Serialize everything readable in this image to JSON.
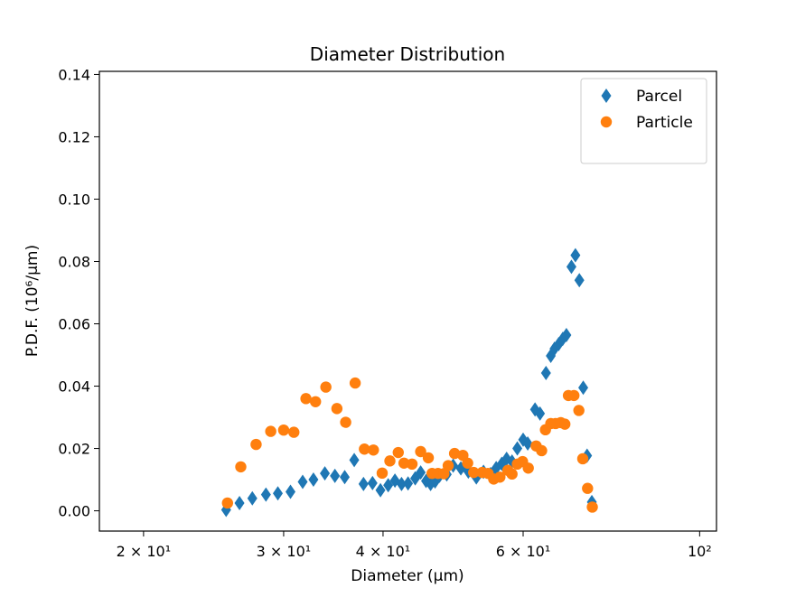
{
  "chart_data": {
    "type": "scatter",
    "title": "Diameter Distribution",
    "xlabel": "Diameter (μm)",
    "ylabel": "P.D.F. (10⁶/μm)",
    "x_scale": "log",
    "xlim": [
      17.6,
      105
    ],
    "ylim": [
      -0.0065,
      0.141
    ],
    "x_ticks": [
      {
        "value": 20,
        "label": "2 × 10¹"
      },
      {
        "value": 30,
        "label": "3 × 10¹"
      },
      {
        "value": 40,
        "label": "4 × 10¹"
      },
      {
        "value": 60,
        "label": "6 × 10¹"
      },
      {
        "value": 100,
        "label": "10²"
      }
    ],
    "y_ticks": [
      0.0,
      0.02,
      0.04,
      0.06,
      0.08,
      0.1,
      0.12,
      0.14
    ],
    "y_tick_labels": [
      "0.00",
      "0.02",
      "0.04",
      "0.06",
      "0.08",
      "0.10",
      "0.12",
      "0.14"
    ],
    "grid": false,
    "legend_position": "top-right",
    "series": [
      {
        "name": "Parcel",
        "marker": "diamond",
        "color": "#1f77b4",
        "points": [
          [
            25.4,
            0.0003
          ],
          [
            26.4,
            0.0025
          ],
          [
            27.4,
            0.004
          ],
          [
            28.5,
            0.0052
          ],
          [
            29.5,
            0.0056
          ],
          [
            30.6,
            0.0061
          ],
          [
            31.7,
            0.0093
          ],
          [
            32.7,
            0.01
          ],
          [
            33.8,
            0.012
          ],
          [
            34.8,
            0.0112
          ],
          [
            35.8,
            0.0108
          ],
          [
            36.8,
            0.0163
          ],
          [
            37.8,
            0.0086
          ],
          [
            38.8,
            0.0089
          ],
          [
            39.7,
            0.0066
          ],
          [
            40.6,
            0.0082
          ],
          [
            41.4,
            0.0097
          ],
          [
            42.2,
            0.0086
          ],
          [
            43.0,
            0.0088
          ],
          [
            43.9,
            0.0104
          ],
          [
            44.6,
            0.0123
          ],
          [
            45.3,
            0.0096
          ],
          [
            45.9,
            0.0086
          ],
          [
            46.5,
            0.0094
          ],
          [
            47.1,
            0.0112
          ],
          [
            48.1,
            0.0117
          ],
          [
            49.0,
            0.0145
          ],
          [
            50.1,
            0.0136
          ],
          [
            51.2,
            0.0126
          ],
          [
            52.4,
            0.0107
          ],
          [
            53.5,
            0.0125
          ],
          [
            54.6,
            0.0118
          ],
          [
            55.5,
            0.0137
          ],
          [
            56.4,
            0.0151
          ],
          [
            57.2,
            0.0167
          ],
          [
            58.1,
            0.0158
          ],
          [
            59.0,
            0.02
          ],
          [
            60.0,
            0.0228
          ],
          [
            60.8,
            0.0216
          ],
          [
            62.1,
            0.0325
          ],
          [
            63.0,
            0.0312
          ],
          [
            64.1,
            0.0442
          ],
          [
            65.0,
            0.0497
          ],
          [
            65.7,
            0.052
          ],
          [
            66.5,
            0.0535
          ],
          [
            67.3,
            0.0552
          ],
          [
            68.0,
            0.0564
          ],
          [
            69.0,
            0.0783
          ],
          [
            69.8,
            0.082
          ],
          [
            70.6,
            0.074
          ],
          [
            71.4,
            0.0395
          ],
          [
            72.2,
            0.0177
          ],
          [
            73.2,
            0.0028
          ]
        ]
      },
      {
        "name": "Particle",
        "marker": "circle",
        "color": "#ff7f0e",
        "points": [
          [
            25.5,
            0.0025
          ],
          [
            26.5,
            0.0141
          ],
          [
            27.7,
            0.0213
          ],
          [
            28.9,
            0.0255
          ],
          [
            30.0,
            0.0259
          ],
          [
            30.9,
            0.0252
          ],
          [
            32.0,
            0.036
          ],
          [
            32.9,
            0.035
          ],
          [
            33.9,
            0.0397
          ],
          [
            35.0,
            0.0328
          ],
          [
            35.9,
            0.0284
          ],
          [
            36.9,
            0.041
          ],
          [
            37.9,
            0.0198
          ],
          [
            38.9,
            0.0195
          ],
          [
            39.9,
            0.0121
          ],
          [
            40.8,
            0.016
          ],
          [
            41.8,
            0.0187
          ],
          [
            42.5,
            0.0153
          ],
          [
            43.5,
            0.015
          ],
          [
            44.6,
            0.019
          ],
          [
            45.6,
            0.017
          ],
          [
            46.1,
            0.012
          ],
          [
            46.9,
            0.012
          ],
          [
            47.7,
            0.0119
          ],
          [
            48.3,
            0.0145
          ],
          [
            49.2,
            0.0184
          ],
          [
            50.4,
            0.0178
          ],
          [
            51.1,
            0.0153
          ],
          [
            52.0,
            0.0123
          ],
          [
            53.3,
            0.0123
          ],
          [
            54.2,
            0.012
          ],
          [
            55.1,
            0.0102
          ],
          [
            56.1,
            0.0108
          ],
          [
            57.4,
            0.013
          ],
          [
            58.1,
            0.0118
          ],
          [
            59.0,
            0.015
          ],
          [
            59.9,
            0.0158
          ],
          [
            60.9,
            0.0137
          ],
          [
            62.3,
            0.0208
          ],
          [
            63.3,
            0.0193
          ],
          [
            64.0,
            0.026
          ],
          [
            65.0,
            0.028
          ],
          [
            65.9,
            0.028
          ],
          [
            66.9,
            0.0283
          ],
          [
            67.7,
            0.0278
          ],
          [
            68.4,
            0.037
          ],
          [
            69.5,
            0.037
          ],
          [
            70.5,
            0.0322
          ],
          [
            71.3,
            0.0167
          ],
          [
            72.3,
            0.0072
          ],
          [
            73.3,
            0.0012
          ]
        ]
      }
    ]
  }
}
